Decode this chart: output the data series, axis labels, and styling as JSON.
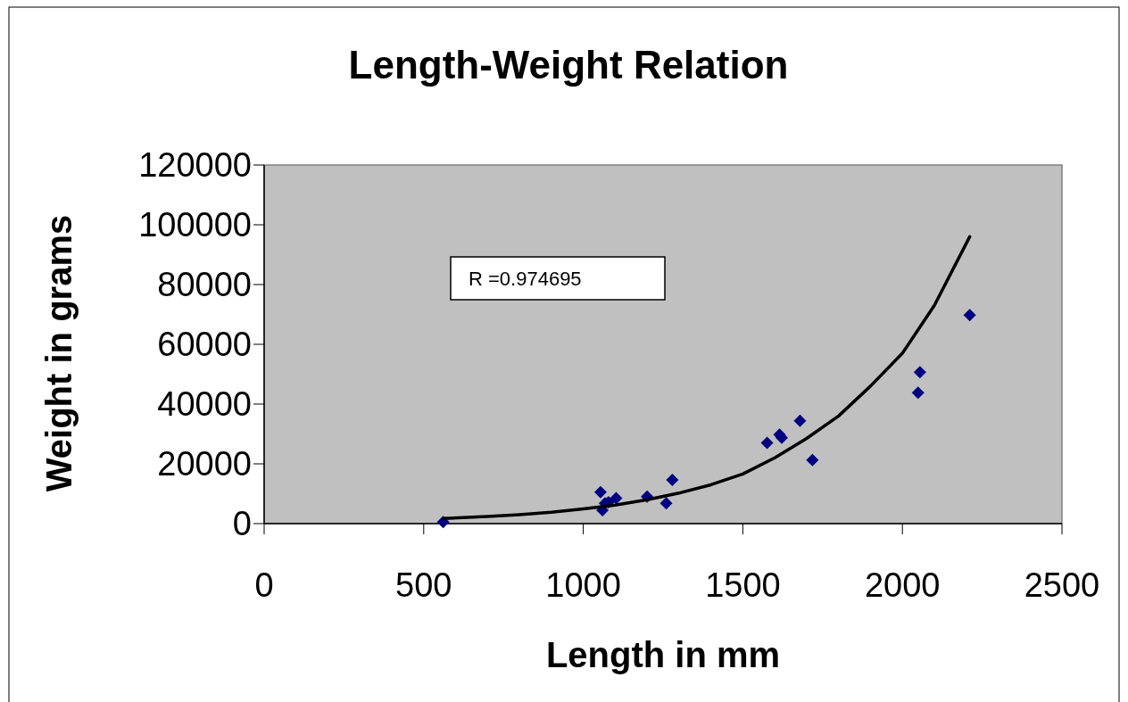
{
  "chart_data": {
    "type": "scatter",
    "title": "Length-Weight Relation",
    "xlabel": "Length in mm",
    "ylabel": "Weight in grams",
    "annotations": [
      "R =0.974695"
    ],
    "xlim": [
      0,
      2500
    ],
    "xticks": [
      0,
      500,
      1000,
      1500,
      2000,
      2500
    ],
    "ylim": [
      0,
      120000
    ],
    "yticks": [
      0,
      20000,
      40000,
      60000,
      80000,
      100000,
      120000
    ],
    "grid": false,
    "marker": "diamond",
    "series": [
      {
        "color": "#000080",
        "x": [
          561,
          1054,
          1060,
          1068,
          1079,
          1103,
          1200,
          1260,
          1279,
          1576,
          1615,
          1622,
          1679,
          1718,
          2049,
          2055,
          2211
        ],
        "values": [
          500,
          10500,
          4500,
          6800,
          7200,
          8500,
          9000,
          6800,
          14600,
          27000,
          29800,
          28700,
          34400,
          21300,
          43800,
          50700,
          69800
        ]
      },
      {
        "type": "line",
        "color": "#000000",
        "marker": "none",
        "line_style": "solid",
        "x": [
          561,
          700,
          800,
          900,
          1000,
          1100,
          1200,
          1300,
          1400,
          1500,
          1600,
          1700,
          1800,
          1900,
          2000,
          2100,
          2211
        ],
        "values": [
          1700,
          2400,
          3000,
          3800,
          4900,
          6200,
          8000,
          10200,
          13000,
          16600,
          22000,
          28500,
          36000,
          46000,
          57000,
          73000,
          96000
        ]
      }
    ]
  }
}
